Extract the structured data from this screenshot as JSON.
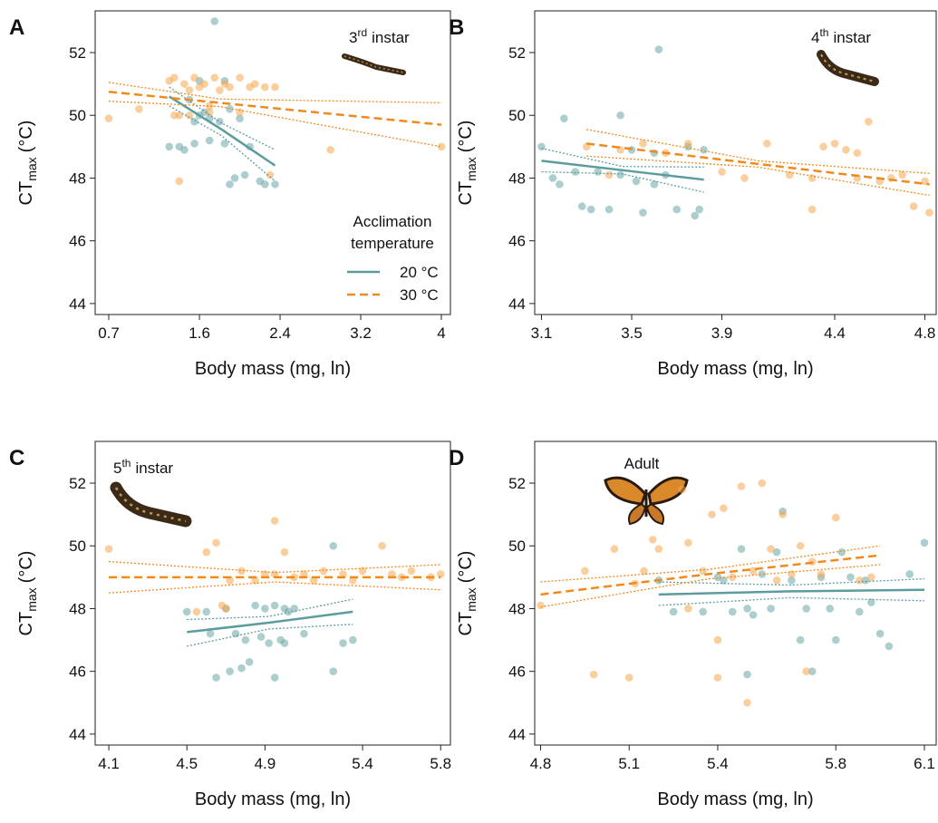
{
  "chart_data": [
    {
      "type": "scatter",
      "panel": "A",
      "annotation": [
        "3",
        "rd",
        "instar"
      ],
      "xlabel": "Body mass (mg, ln)",
      "ylabel": [
        "CT",
        "max",
        "(°C)"
      ],
      "xlim": [
        0.565,
        4.09
      ],
      "ylim": [
        43.65,
        53.33
      ],
      "xticks": [
        0.7,
        1.6,
        2.4,
        3.2,
        4
      ],
      "yticks": [
        44,
        46,
        48,
        50,
        52
      ],
      "legend": true,
      "legend_title": [
        "Acclimation",
        "temperature"
      ],
      "series": [
        {
          "name": "20 °C",
          "color": "#6aa5a5",
          "fit_color": "#5b9c9c",
          "dash": false,
          "x": [
            1.3,
            1.4,
            1.45,
            1.55,
            1.6,
            1.65,
            1.7,
            1.75,
            1.7,
            1.8,
            1.85,
            1.9,
            1.95,
            2.0,
            2.05,
            2.1,
            2.2,
            2.25,
            2.35,
            1.5,
            1.6,
            1.85,
            1.9,
            1.55
          ],
          "values": [
            49.0,
            49.0,
            48.9,
            49.1,
            51.1,
            50.1,
            49.2,
            53.0,
            49.9,
            49.8,
            49.1,
            47.8,
            48.0,
            49.9,
            48.1,
            49.0,
            47.9,
            47.8,
            47.8,
            50.5,
            50.0,
            51.1,
            50.2,
            49.8
          ],
          "fit": {
            "x": [
              1.3,
              1.82,
              2.35
            ],
            "y": [
              50.6,
              49.55,
              48.4
            ],
            "lo": [
              50.3,
              49.35,
              47.9
            ],
            "hi": [
              50.9,
              49.75,
              48.9
            ]
          }
        },
        {
          "name": "30 °C",
          "color": "#f7a54f",
          "fit_color": "#f08a1e",
          "dash": true,
          "x": [
            0.7,
            1.0,
            1.3,
            1.35,
            1.4,
            1.45,
            1.5,
            1.55,
            1.6,
            1.65,
            1.7,
            1.75,
            1.8,
            1.85,
            1.9,
            2.0,
            2.1,
            2.15,
            2.25,
            2.35,
            1.4,
            1.7,
            2.3,
            2.9,
            4.0,
            1.5,
            2.0,
            1.35
          ],
          "values": [
            49.9,
            50.2,
            51.1,
            51.2,
            50.0,
            51.0,
            50.8,
            51.2,
            50.9,
            51.0,
            50.1,
            51.2,
            50.8,
            51.0,
            50.9,
            51.2,
            50.9,
            51.0,
            50.9,
            50.9,
            47.9,
            50.3,
            48.1,
            48.9,
            49.0,
            50.0,
            50.1,
            50.0
          ],
          "fit": {
            "x": [
              0.7,
              1.8,
              4.0
            ],
            "y": [
              50.75,
              50.4,
              49.7
            ],
            "lo": [
              50.45,
              50.28,
              49.0
            ],
            "hi": [
              51.05,
              50.52,
              50.4
            ]
          }
        }
      ]
    },
    {
      "type": "scatter",
      "panel": "B",
      "annotation": [
        "4",
        "th",
        "instar"
      ],
      "xlabel": "Body mass (mg, ln)",
      "ylabel": [
        "CT",
        "max",
        "(°C)"
      ],
      "xlim": [
        3.07,
        4.85
      ],
      "ylim": [
        43.65,
        53.33
      ],
      "xticks": [
        3.1,
        3.5,
        3.9,
        4.4,
        4.8
      ],
      "yticks": [
        44,
        46,
        48,
        50,
        52
      ],
      "legend": false,
      "series": [
        {
          "color": "#6aa5a5",
          "fit_color": "#5b9c9c",
          "dash": false,
          "x": [
            3.1,
            3.15,
            3.18,
            3.2,
            3.25,
            3.28,
            3.32,
            3.35,
            3.4,
            3.45,
            3.45,
            3.5,
            3.52,
            3.55,
            3.6,
            3.62,
            3.65,
            3.7,
            3.75,
            3.78,
            3.8,
            3.82,
            3.6
          ],
          "values": [
            49.0,
            48.0,
            47.8,
            49.9,
            48.2,
            47.1,
            47.0,
            48.2,
            47.0,
            48.1,
            50.0,
            48.9,
            47.9,
            46.9,
            47.8,
            52.1,
            48.1,
            47.0,
            49.0,
            46.8,
            47.0,
            48.9,
            48.8
          ],
          "fit": {
            "x": [
              3.1,
              3.46,
              3.82
            ],
            "y": [
              48.55,
              48.25,
              47.95
            ],
            "lo": [
              48.2,
              48.13,
              47.55
            ],
            "hi": [
              48.95,
              48.37,
              48.35
            ]
          }
        },
        {
          "color": "#f7a54f",
          "fit_color": "#f08a1e",
          "dash": true,
          "x": [
            3.3,
            3.45,
            3.55,
            3.65,
            3.75,
            3.9,
            4.0,
            4.1,
            4.2,
            4.3,
            4.35,
            4.4,
            4.45,
            4.5,
            4.55,
            4.6,
            4.65,
            4.7,
            4.75,
            4.8,
            4.82,
            4.3,
            4.5,
            3.4
          ],
          "values": [
            49.0,
            48.9,
            49.1,
            48.8,
            49.1,
            48.2,
            48.0,
            49.1,
            48.1,
            48.0,
            49.0,
            49.1,
            48.9,
            48.8,
            49.8,
            47.9,
            48.0,
            48.1,
            47.1,
            47.9,
            46.9,
            47.0,
            48.0,
            48.1
          ],
          "fit": {
            "x": [
              3.3,
              4.06,
              4.82
            ],
            "y": [
              49.1,
              48.45,
              47.8
            ],
            "lo": [
              48.7,
              48.35,
              47.45
            ],
            "hi": [
              49.55,
              48.55,
              48.15
            ]
          }
        }
      ]
    },
    {
      "type": "scatter",
      "panel": "C",
      "annotation": [
        "5",
        "th",
        "instar"
      ],
      "xlabel": "Body mass (mg, ln)",
      "ylabel": [
        "CT",
        "max",
        "(°C)"
      ],
      "xlim": [
        4.03,
        5.85
      ],
      "ylim": [
        43.65,
        53.33
      ],
      "xticks": [
        4.1,
        4.5,
        4.9,
        5.4,
        5.8
      ],
      "yticks": [
        44,
        46,
        48,
        50,
        52
      ],
      "legend": false,
      "series": [
        {
          "color": "#6aa5a5",
          "fit_color": "#5b9c9c",
          "dash": false,
          "x": [
            4.5,
            4.6,
            4.62,
            4.65,
            4.7,
            4.72,
            4.75,
            4.78,
            4.8,
            4.82,
            4.85,
            4.88,
            4.9,
            4.92,
            4.95,
            4.98,
            5.0,
            5.02,
            5.05,
            5.1,
            5.25,
            5.25,
            5.3,
            5.35,
            4.95,
            5.0
          ],
          "values": [
            47.9,
            47.9,
            47.2,
            45.8,
            48.0,
            46.0,
            47.2,
            46.1,
            47.0,
            46.3,
            48.1,
            47.1,
            48.0,
            46.9,
            45.8,
            47.0,
            46.9,
            47.9,
            48.0,
            47.2,
            46.0,
            50.0,
            46.9,
            47.0,
            48.1,
            48.0
          ],
          "fit": {
            "x": [
              4.5,
              4.92,
              5.35
            ],
            "y": [
              47.25,
              47.55,
              47.9
            ],
            "lo": [
              46.8,
              47.35,
              47.5
            ],
            "hi": [
              47.65,
              47.75,
              48.3
            ]
          }
        },
        {
          "color": "#f7a54f",
          "fit_color": "#f08a1e",
          "dash": true,
          "x": [
            4.1,
            4.55,
            4.6,
            4.65,
            4.68,
            4.72,
            4.78,
            4.85,
            4.9,
            4.95,
            4.95,
            5.0,
            5.05,
            5.1,
            5.15,
            5.2,
            5.3,
            5.35,
            5.4,
            5.5,
            5.55,
            5.6,
            5.65,
            5.75,
            5.8,
            4.7
          ],
          "values": [
            49.9,
            47.9,
            49.8,
            50.1,
            48.1,
            48.9,
            49.2,
            48.9,
            49.1,
            50.8,
            49.1,
            49.8,
            49.0,
            49.1,
            48.9,
            49.2,
            49.1,
            48.9,
            49.2,
            50.0,
            49.1,
            49.0,
            49.2,
            49.0,
            49.1,
            48.0
          ],
          "fit": {
            "x": [
              4.1,
              4.95,
              5.8
            ],
            "y": [
              49.0,
              49.0,
              49.0
            ],
            "lo": [
              48.5,
              48.85,
              48.6
            ],
            "hi": [
              49.5,
              49.15,
              49.4
            ]
          }
        }
      ]
    },
    {
      "type": "scatter",
      "panel": "D",
      "annotation": [
        "Adult"
      ],
      "xlabel": "Body mass (mg, ln)",
      "ylabel": [
        "CT",
        "max",
        "(°C)"
      ],
      "xlim": [
        4.78,
        6.14
      ],
      "ylim": [
        43.65,
        53.33
      ],
      "xticks": [
        4.8,
        5.1,
        5.4,
        5.8,
        6.1
      ],
      "yticks": [
        44,
        46,
        48,
        50,
        52
      ],
      "legend": false,
      "series": [
        {
          "color": "#6aa5a5",
          "fit_color": "#5b9c9c",
          "dash": false,
          "x": [
            5.2,
            5.25,
            5.35,
            5.4,
            5.42,
            5.45,
            5.48,
            5.5,
            5.52,
            5.55,
            5.58,
            5.6,
            5.62,
            5.65,
            5.68,
            5.7,
            5.72,
            5.75,
            5.78,
            5.8,
            5.85,
            5.88,
            5.9,
            5.92,
            5.95,
            5.98,
            6.05,
            6.1,
            5.5,
            5.82
          ],
          "values": [
            48.9,
            47.9,
            47.9,
            49.0,
            48.9,
            47.9,
            49.9,
            48.0,
            47.8,
            49.1,
            48.0,
            49.8,
            51.1,
            48.9,
            47.0,
            48.0,
            46.0,
            49.0,
            48.0,
            47.0,
            49.0,
            47.9,
            48.9,
            48.2,
            47.2,
            46.8,
            49.1,
            50.1,
            45.9,
            49.8
          ],
          "fit": {
            "x": [
              5.2,
              5.65,
              6.1
            ],
            "y": [
              48.45,
              48.55,
              48.6
            ],
            "lo": [
              48.1,
              48.35,
              48.25
            ],
            "hi": [
              48.85,
              48.75,
              48.95
            ]
          }
        },
        {
          "color": "#f7a54f",
          "fit_color": "#f08a1e",
          "dash": true,
          "x": [
            4.8,
            4.95,
            4.98,
            5.05,
            5.1,
            5.12,
            5.15,
            5.18,
            5.2,
            5.28,
            5.3,
            5.35,
            5.38,
            5.4,
            5.42,
            5.45,
            5.48,
            5.5,
            5.52,
            5.55,
            5.58,
            5.6,
            5.62,
            5.65,
            5.68,
            5.7,
            5.72,
            5.75,
            5.8,
            5.88,
            5.92,
            5.4,
            5.3
          ],
          "values": [
            48.1,
            49.2,
            45.9,
            49.9,
            45.8,
            48.8,
            49.2,
            50.2,
            49.9,
            51.8,
            50.1,
            49.2,
            51.0,
            47.0,
            51.2,
            49.0,
            51.9,
            45.0,
            49.2,
            52.0,
            49.9,
            48.9,
            51.0,
            49.1,
            50.0,
            46.0,
            49.5,
            49.1,
            50.9,
            48.9,
            49.0,
            45.8,
            48.0
          ],
          "fit": {
            "x": [
              4.8,
              5.37,
              5.95
            ],
            "y": [
              48.45,
              49.1,
              49.7
            ],
            "lo": [
              48.05,
              48.95,
              49.4
            ],
            "hi": [
              48.85,
              49.25,
              50.0
            ]
          }
        }
      ]
    }
  ]
}
